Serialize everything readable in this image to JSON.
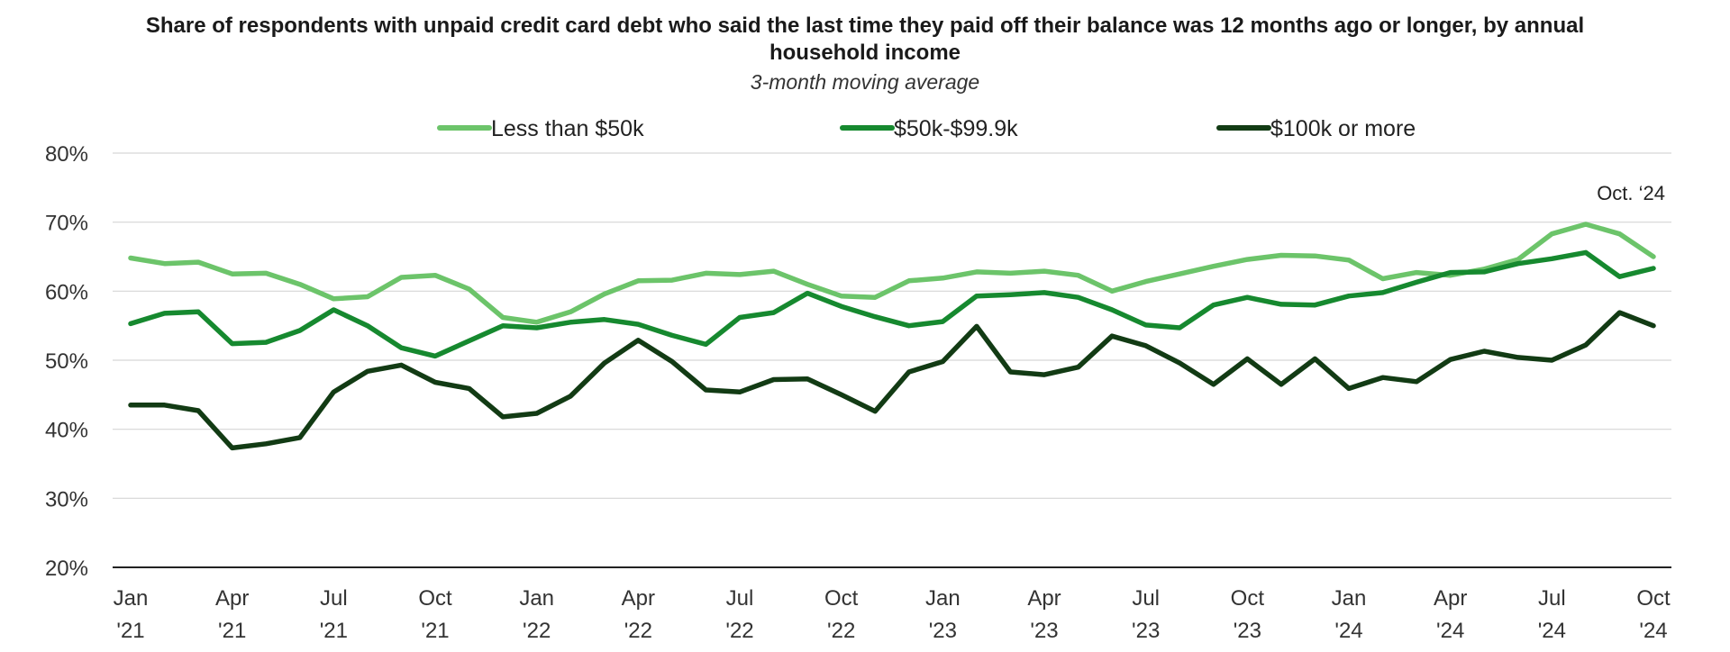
{
  "chart_data": {
    "type": "line",
    "title_lines": [
      "Share of respondents with unpaid credit card debt who said the last time they paid off their balance was 12 months ago or longer, by annual",
      "household income"
    ],
    "subtitle": "3-month moving average",
    "y_tick_labels": [
      "80%",
      "70%",
      "60%",
      "50%",
      "40%",
      "30%",
      "20%"
    ],
    "y_ticks": [
      80,
      70,
      60,
      50,
      40,
      30,
      20
    ],
    "ylim": [
      20,
      80
    ],
    "x_tick_labels": [
      {
        "month": "Jan",
        "year": "'21"
      },
      {
        "month": "Apr",
        "year": "'21"
      },
      {
        "month": "Jul",
        "year": "'21"
      },
      {
        "month": "Oct",
        "year": "'21"
      },
      {
        "month": "Jan",
        "year": "'22"
      },
      {
        "month": "Apr",
        "year": "'22"
      },
      {
        "month": "Jul",
        "year": "'22"
      },
      {
        "month": "Oct",
        "year": "'22"
      },
      {
        "month": "Jan",
        "year": "'23"
      },
      {
        "month": "Apr",
        "year": "'23"
      },
      {
        "month": "Jul",
        "year": "'23"
      },
      {
        "month": "Oct",
        "year": "'23"
      },
      {
        "month": "Jan",
        "year": "'24"
      },
      {
        "month": "Apr",
        "year": "'24"
      },
      {
        "month": "Jul",
        "year": "'24"
      },
      {
        "month": "Oct",
        "year": "'24"
      }
    ],
    "x": [
      "2021-01",
      "2021-02",
      "2021-03",
      "2021-04",
      "2021-05",
      "2021-06",
      "2021-07",
      "2021-08",
      "2021-09",
      "2021-10",
      "2021-11",
      "2021-12",
      "2022-01",
      "2022-02",
      "2022-03",
      "2022-04",
      "2022-05",
      "2022-06",
      "2022-07",
      "2022-08",
      "2022-09",
      "2022-10",
      "2022-11",
      "2022-12",
      "2023-01",
      "2023-02",
      "2023-03",
      "2023-04",
      "2023-05",
      "2023-06",
      "2023-07",
      "2023-08",
      "2023-09",
      "2023-10",
      "2023-11",
      "2023-12",
      "2024-01",
      "2024-02",
      "2024-03",
      "2024-04",
      "2024-05",
      "2024-06",
      "2024-07",
      "2024-08",
      "2024-09",
      "2024-10"
    ],
    "grid": true,
    "legend_position": "top-center",
    "annotation": "Oct. ‘24",
    "series": [
      {
        "name": "Less than $50k",
        "color": "#6cc46a",
        "values": [
          64.8,
          64.0,
          64.2,
          62.5,
          62.6,
          61.0,
          58.9,
          59.2,
          62.0,
          62.3,
          60.3,
          56.2,
          55.5,
          57.0,
          59.6,
          61.5,
          61.6,
          62.6,
          62.4,
          62.9,
          61.0,
          59.3,
          59.1,
          61.5,
          61.9,
          62.8,
          62.6,
          62.9,
          62.3,
          60.0,
          61.4,
          62.5,
          63.6,
          64.6,
          65.2,
          65.1,
          64.5,
          61.8,
          62.7,
          62.3,
          63.2,
          64.6,
          68.3,
          69.7,
          68.3,
          65.0
        ]
      },
      {
        "name": "$50k-$99.9k",
        "color": "#16892f",
        "values": [
          55.3,
          56.8,
          57.0,
          52.4,
          52.6,
          54.3,
          57.3,
          55.0,
          51.8,
          50.6,
          52.8,
          55.0,
          54.7,
          55.5,
          55.9,
          55.2,
          53.6,
          52.3,
          56.2,
          56.9,
          59.7,
          57.8,
          56.3,
          55.0,
          55.6,
          59.3,
          59.5,
          59.8,
          59.1,
          57.3,
          55.1,
          54.7,
          58.0,
          59.1,
          58.1,
          58.0,
          59.3,
          59.8,
          61.3,
          62.7,
          62.8,
          64.0,
          64.7,
          65.6,
          62.1,
          63.3
        ]
      },
      {
        "name": "$100k or more",
        "color": "#123b14",
        "values": [
          43.5,
          43.5,
          42.7,
          37.3,
          37.9,
          38.8,
          45.4,
          48.4,
          49.3,
          46.8,
          45.9,
          41.8,
          42.3,
          44.8,
          49.6,
          52.9,
          49.8,
          45.7,
          45.4,
          47.2,
          47.3,
          45.0,
          42.6,
          48.3,
          49.8,
          54.9,
          48.3,
          47.9,
          49.0,
          53.5,
          52.1,
          49.6,
          46.5,
          50.2,
          46.5,
          50.2,
          45.9,
          47.5,
          46.9,
          50.1,
          51.3,
          50.4,
          50.0,
          52.2,
          56.9,
          55.0
        ]
      }
    ]
  }
}
